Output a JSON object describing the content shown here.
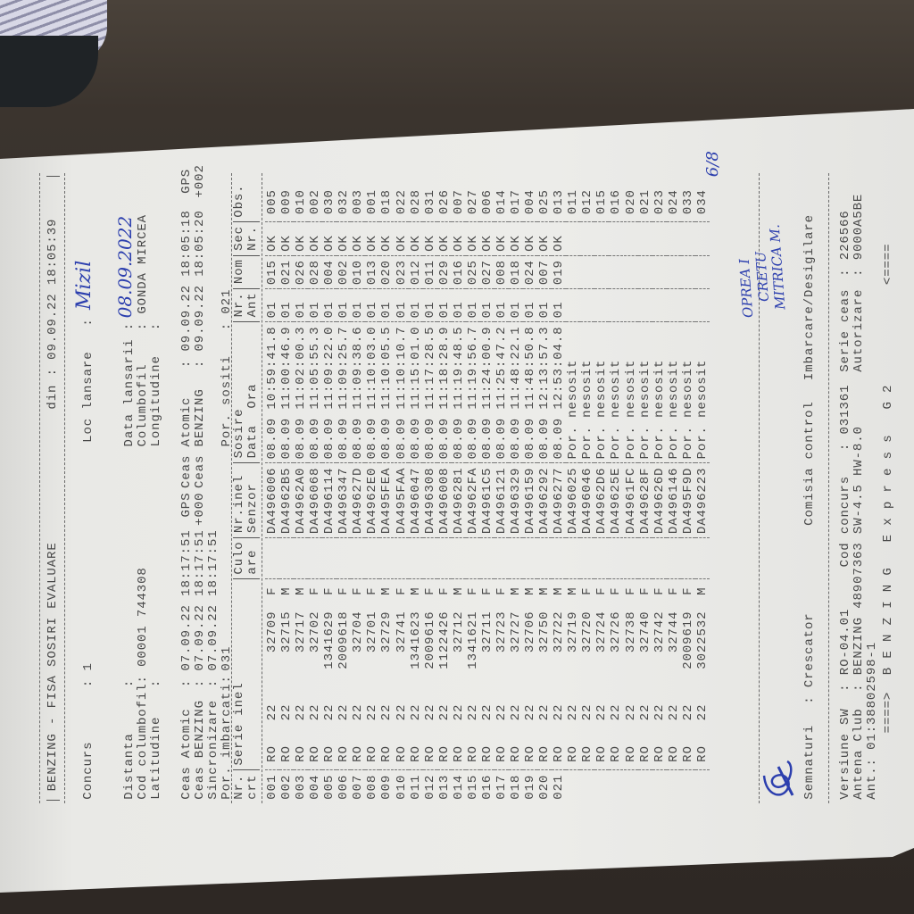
{
  "header": {
    "title": "BENZING - FISA SOSIRI EVALUARE",
    "din_label": "din :",
    "din_value": "09.09.22 18:05:39",
    "concurs_label": "Concurs",
    "concurs_value": ": 1",
    "loc_lansare_label": "Loc lansare",
    "loc_lansare_colon": ":",
    "loc_lansare_value": "Mizil",
    "distanta_label": "Distanta",
    "distanta_value": ":",
    "data_lansarii_label": "Data lansarii :",
    "data_lansarii_value": "08.09.2022",
    "cod_columbofil_label": "Cod columbofil:",
    "cod_columbofil_value": "00001 744308",
    "columbofil_label": "Columbofil",
    "columbofil_value": ": GONDA MIRCEA",
    "latitudine_label": "Latitudine",
    "latitudine_value": ":",
    "longitudine_label": "Longitudine",
    "longitudine_value": ":",
    "ceas_atomic_label": "Ceas Atomic",
    "ceas_atomic_value": ": 07.09.22 18:17:51",
    "ceas_atomic_flag": "GPS",
    "ceas_atomic2_label": "Ceas Atomic",
    "ceas_atomic2_value": ": 09.09.22 18:05:18",
    "ceas_atomic2_flag": "GPS",
    "ceas_benzing_label": "Ceas BENZING",
    "ceas_benzing_value": ": 07.09.22 18:17:51",
    "ceas_benzing_flag": "+000",
    "ceas_benzing2_label": "Ceas BENZING",
    "ceas_benzing2_value": ": 09.09.22 18:05:20",
    "ceas_benzing2_flag": "+002",
    "sincronizare_label": "Sincronizare",
    "sincronizare_value": ": 07.09.22 18:17:51",
    "por_imbarcati_label": "Por. imbarcati:",
    "por_imbarcati_value": "031",
    "por_sositi_label": "Por. sositi",
    "por_sositi_value": ": 021"
  },
  "table": {
    "columns": [
      {
        "l1": "Nr.",
        "l2": "crt"
      },
      {
        "l1": "Serie inel",
        "l2": ""
      },
      {
        "l1": "Culo",
        "l2": "are"
      },
      {
        "l1": "Nr.inel",
        "l2": "Senzor"
      },
      {
        "l1": "Sosire",
        "l2": "Data  Ora"
      },
      {
        "l1": "Nr.",
        "l2": "Ant"
      },
      {
        "l1": "Nom",
        "l2": ""
      },
      {
        "l1": "Sec",
        "l2": "Nr."
      },
      {
        "l1": "Obs.",
        "l2": ""
      }
    ],
    "rows": [
      {
        "nr": "001",
        "country": "RO",
        "year": "22",
        "ring": "32709",
        "sex": "F",
        "sensor": "DA496006",
        "arrival": "08.09 10:59:41.8",
        "ant": "01",
        "nom": "015",
        "sec": "OK",
        "obs": "005"
      },
      {
        "nr": "002",
        "country": "RO",
        "year": "22",
        "ring": "32715",
        "sex": "M",
        "sensor": "DA4962B5",
        "arrival": "08.09 11:00:46.9",
        "ant": "01",
        "nom": "021",
        "sec": "OK",
        "obs": "009"
      },
      {
        "nr": "003",
        "country": "RO",
        "year": "22",
        "ring": "32717",
        "sex": "M",
        "sensor": "DA4962A0",
        "arrival": "08.09 11:02:00.3",
        "ant": "01",
        "nom": "026",
        "sec": "OK",
        "obs": "010"
      },
      {
        "nr": "004",
        "country": "RO",
        "year": "22",
        "ring": "32702",
        "sex": "F",
        "sensor": "DA496068",
        "arrival": "08.09 11:05:55.3",
        "ant": "01",
        "nom": "028",
        "sec": "OK",
        "obs": "002"
      },
      {
        "nr": "005",
        "country": "RO",
        "year": "22",
        "ring": "1341629",
        "sex": "F",
        "sensor": "DA496114",
        "arrival": "08.09 11:09:22.0",
        "ant": "01",
        "nom": "004",
        "sec": "OK",
        "obs": "030"
      },
      {
        "nr": "006",
        "country": "RO",
        "year": "22",
        "ring": "2009618",
        "sex": "F",
        "sensor": "DA496347",
        "arrival": "08.09 11:09:25.7",
        "ant": "01",
        "nom": "002",
        "sec": "OK",
        "obs": "032"
      },
      {
        "nr": "007",
        "country": "RO",
        "year": "22",
        "ring": "32704",
        "sex": "F",
        "sensor": "DA49627D",
        "arrival": "08.09 11:09:38.6",
        "ant": "01",
        "nom": "010",
        "sec": "OK",
        "obs": "003"
      },
      {
        "nr": "008",
        "country": "RO",
        "year": "22",
        "ring": "32701",
        "sex": "F",
        "sensor": "DA4962E0",
        "arrival": "08.09 11:10:03.0",
        "ant": "01",
        "nom": "013",
        "sec": "OK",
        "obs": "001"
      },
      {
        "nr": "009",
        "country": "RO",
        "year": "22",
        "ring": "32729",
        "sex": "M",
        "sensor": "DA495FEA",
        "arrival": "08.09 11:10:05.5",
        "ant": "01",
        "nom": "020",
        "sec": "OK",
        "obs": "018"
      },
      {
        "nr": "010",
        "country": "RO",
        "year": "22",
        "ring": "32741",
        "sex": "F",
        "sensor": "DA495FAA",
        "arrival": "08.09 11:10:10.7",
        "ant": "01",
        "nom": "023",
        "sec": "OK",
        "obs": "022"
      },
      {
        "nr": "011",
        "country": "RO",
        "year": "22",
        "ring": "1341623",
        "sex": "M",
        "sensor": "DA496047",
        "arrival": "08.09 11:15:01.0",
        "ant": "01",
        "nom": "012",
        "sec": "OK",
        "obs": "028"
      },
      {
        "nr": "012",
        "country": "RO",
        "year": "22",
        "ring": "2009616",
        "sex": "F",
        "sensor": "DA496308",
        "arrival": "08.09 11:17:28.5",
        "ant": "01",
        "nom": "011",
        "sec": "OK",
        "obs": "031"
      },
      {
        "nr": "013",
        "country": "RO",
        "year": "22",
        "ring": "1122426",
        "sex": "F",
        "sensor": "DA496008",
        "arrival": "08.09 11:18:28.9",
        "ant": "01",
        "nom": "029",
        "sec": "OK",
        "obs": "026"
      },
      {
        "nr": "014",
        "country": "RO",
        "year": "22",
        "ring": "32712",
        "sex": "M",
        "sensor": "DA496281",
        "arrival": "08.09 11:19:48.5",
        "ant": "01",
        "nom": "016",
        "sec": "OK",
        "obs": "007"
      },
      {
        "nr": "015",
        "country": "RO",
        "year": "22",
        "ring": "1341621",
        "sex": "F",
        "sensor": "DA4962FA",
        "arrival": "08.09 11:19:56.7",
        "ant": "01",
        "nom": "025",
        "sec": "OK",
        "obs": "027"
      },
      {
        "nr": "016",
        "country": "RO",
        "year": "22",
        "ring": "32711",
        "sex": "F",
        "sensor": "DA4961C5",
        "arrival": "08.09 11:24:00.9",
        "ant": "01",
        "nom": "027",
        "sec": "OK",
        "obs": "006"
      },
      {
        "nr": "017",
        "country": "RO",
        "year": "22",
        "ring": "32723",
        "sex": "F",
        "sensor": "DA496121",
        "arrival": "08.09 11:25:47.2",
        "ant": "01",
        "nom": "008",
        "sec": "OK",
        "obs": "014"
      },
      {
        "nr": "018",
        "country": "RO",
        "year": "22",
        "ring": "32727",
        "sex": "M",
        "sensor": "DA496329",
        "arrival": "08.09 11:48:22.1",
        "ant": "01",
        "nom": "018",
        "sec": "OK",
        "obs": "017"
      },
      {
        "nr": "019",
        "country": "RO",
        "year": "22",
        "ring": "32706",
        "sex": "M",
        "sensor": "DA496159",
        "arrival": "08.09 11:48:50.8",
        "ant": "01",
        "nom": "024",
        "sec": "OK",
        "obs": "004"
      },
      {
        "nr": "020",
        "country": "RO",
        "year": "22",
        "ring": "32750",
        "sex": "M",
        "sensor": "DA496292",
        "arrival": "08.09 12:13:57.3",
        "ant": "01",
        "nom": "007",
        "sec": "OK",
        "obs": "025"
      },
      {
        "nr": "021",
        "country": "RO",
        "year": "22",
        "ring": "32722",
        "sex": "M",
        "sensor": "DA496277",
        "arrival": "08.09 12:53:04.8",
        "ant": "01",
        "nom": "019",
        "sec": "OK",
        "obs": "013"
      },
      {
        "nr": "",
        "country": "RO",
        "year": "22",
        "ring": "32719",
        "sex": "M",
        "sensor": "DA496025",
        "arrival": "Por. nesosit",
        "ant": "",
        "nom": "",
        "sec": "",
        "obs": "011"
      },
      {
        "nr": "",
        "country": "RO",
        "year": "22",
        "ring": "32720",
        "sex": "F",
        "sensor": "DA496046",
        "arrival": "Por. nesosit",
        "ant": "",
        "nom": "",
        "sec": "",
        "obs": "012"
      },
      {
        "nr": "",
        "country": "RO",
        "year": "22",
        "ring": "32724",
        "sex": "F",
        "sensor": "DA4962D6",
        "arrival": "Por. nesosit",
        "ant": "",
        "nom": "",
        "sec": "",
        "obs": "015"
      },
      {
        "nr": "",
        "country": "RO",
        "year": "22",
        "ring": "32726",
        "sex": "F",
        "sensor": "DA49625E",
        "arrival": "Por. nesosit",
        "ant": "",
        "nom": "",
        "sec": "",
        "obs": "016"
      },
      {
        "nr": "",
        "country": "RO",
        "year": "22",
        "ring": "32738",
        "sex": "F",
        "sensor": "DA4961FC",
        "arrival": "Por. nesosit",
        "ant": "",
        "nom": "",
        "sec": "",
        "obs": "020"
      },
      {
        "nr": "",
        "country": "RO",
        "year": "22",
        "ring": "32740",
        "sex": "F",
        "sensor": "DA49628F",
        "arrival": "Por. nesosit",
        "ant": "",
        "nom": "",
        "sec": "",
        "obs": "021"
      },
      {
        "nr": "",
        "country": "RO",
        "year": "22",
        "ring": "32742",
        "sex": "F",
        "sensor": "DA49626D",
        "arrival": "Por. nesosit",
        "ant": "",
        "nom": "",
        "sec": "",
        "obs": "023"
      },
      {
        "nr": "",
        "country": "RO",
        "year": "22",
        "ring": "32744",
        "sex": "F",
        "sensor": "DA496146",
        "arrival": "Por. nesosit",
        "ant": "",
        "nom": "",
        "sec": "",
        "obs": "024"
      },
      {
        "nr": "",
        "country": "RO",
        "year": "22",
        "ring": "2009619",
        "sex": "F",
        "sensor": "DA495F9D",
        "arrival": "Por. nesosit",
        "ant": "",
        "nom": "",
        "sec": "",
        "obs": "033"
      },
      {
        "nr": "",
        "country": "RO",
        "year": "22",
        "ring": "3022532",
        "sex": "M",
        "sensor": "DA496223",
        "arrival": "Por. nesosit",
        "ant": "",
        "nom": "",
        "sec": "",
        "obs": "034"
      }
    ]
  },
  "footer": {
    "semnaturi_label": "Semnaturi",
    "semnaturi_colon": ":",
    "crescator": "Crescator",
    "comisia": "Comisia control",
    "imbarcare": "Imbarcare/Desigilare",
    "versiune_label": "Versiune SW",
    "versiune_value": ": RO-04.01",
    "cod_concurs_label": "Cod concurs",
    "cod_concurs_value": ": 031361",
    "serie_ceas_label": "Serie ceas",
    "serie_ceas_value": ": 226566",
    "antena_label": "Antena Club",
    "antena_value": ": BENZING 48907363 SW-4.5 HW-8.0",
    "autorizare_label": "Autorizare",
    "autorizare_value": ": 9000A5BE",
    "ant_line": "Ant.: 01:38802598-1",
    "brand_left": "====>",
    "brand": "B E N Z I N G   E x p r e s s   G 2",
    "brand_right": "<===="
  },
  "handwriting": {
    "commission_names": [
      "OPREA I",
      "CRETU",
      "MITRICA M."
    ],
    "corner_mark": "6/8"
  },
  "colors": {
    "ink": "#474747",
    "pen": "#2c3fae",
    "paper": "#ecece9"
  }
}
